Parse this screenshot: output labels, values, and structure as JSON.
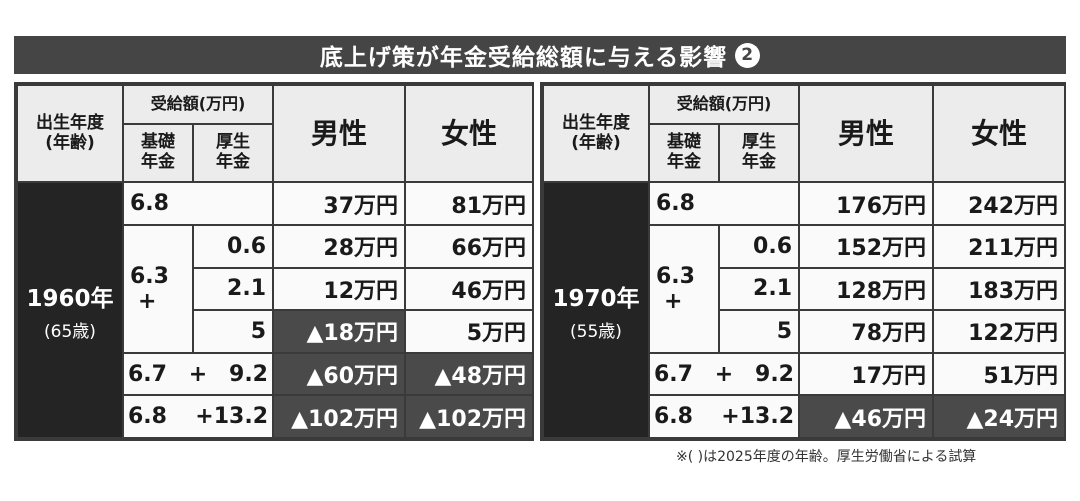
{
  "title": "底上げ策が年金受給総額に与える影響",
  "title_badge": "2",
  "headers": {
    "birth_year": "出生年度",
    "age": "(年齢)",
    "benefit": "受給額(万円)",
    "basic": "基礎年金",
    "employee": "厚生年金",
    "male": "男性",
    "female": "女性"
  },
  "plus": "+",
  "panels": [
    {
      "year": "1960年",
      "age": "(65歳)",
      "rows": [
        {
          "basic": "6.8",
          "employee": "",
          "male": "37万円",
          "female": "81万円"
        },
        {
          "basic": "6.3",
          "employee": "0.6",
          "male": "28万円",
          "female": "66万円"
        },
        {
          "basic": "6.3",
          "employee": "2.1",
          "male": "12万円",
          "female": "46万円"
        },
        {
          "basic": "6.3",
          "employee": "5",
          "male": "▲18万円",
          "female": "5万円"
        },
        {
          "basic": "6.7",
          "employee": "9.2",
          "male": "▲60万円",
          "female": "▲48万円"
        },
        {
          "basic": "6.8",
          "employee": "13.2",
          "male": "▲102万円",
          "female": "▲102万円"
        }
      ]
    },
    {
      "year": "1970年",
      "age": "(55歳)",
      "rows": [
        {
          "basic": "6.8",
          "employee": "",
          "male": "176万円",
          "female": "242万円"
        },
        {
          "basic": "6.3",
          "employee": "0.6",
          "male": "152万円",
          "female": "211万円"
        },
        {
          "basic": "6.3",
          "employee": "2.1",
          "male": "128万円",
          "female": "183万円"
        },
        {
          "basic": "6.3",
          "employee": "5",
          "male": "78万円",
          "female": "122万円"
        },
        {
          "basic": "6.7",
          "employee": "9.2",
          "male": "17万円",
          "female": "51万円"
        },
        {
          "basic": "6.8",
          "employee": "13.2",
          "male": "▲46万円",
          "female": "▲24万円"
        }
      ]
    }
  ],
  "footnote": "※( )は2025年度の年齢。厚生労働省による試算"
}
